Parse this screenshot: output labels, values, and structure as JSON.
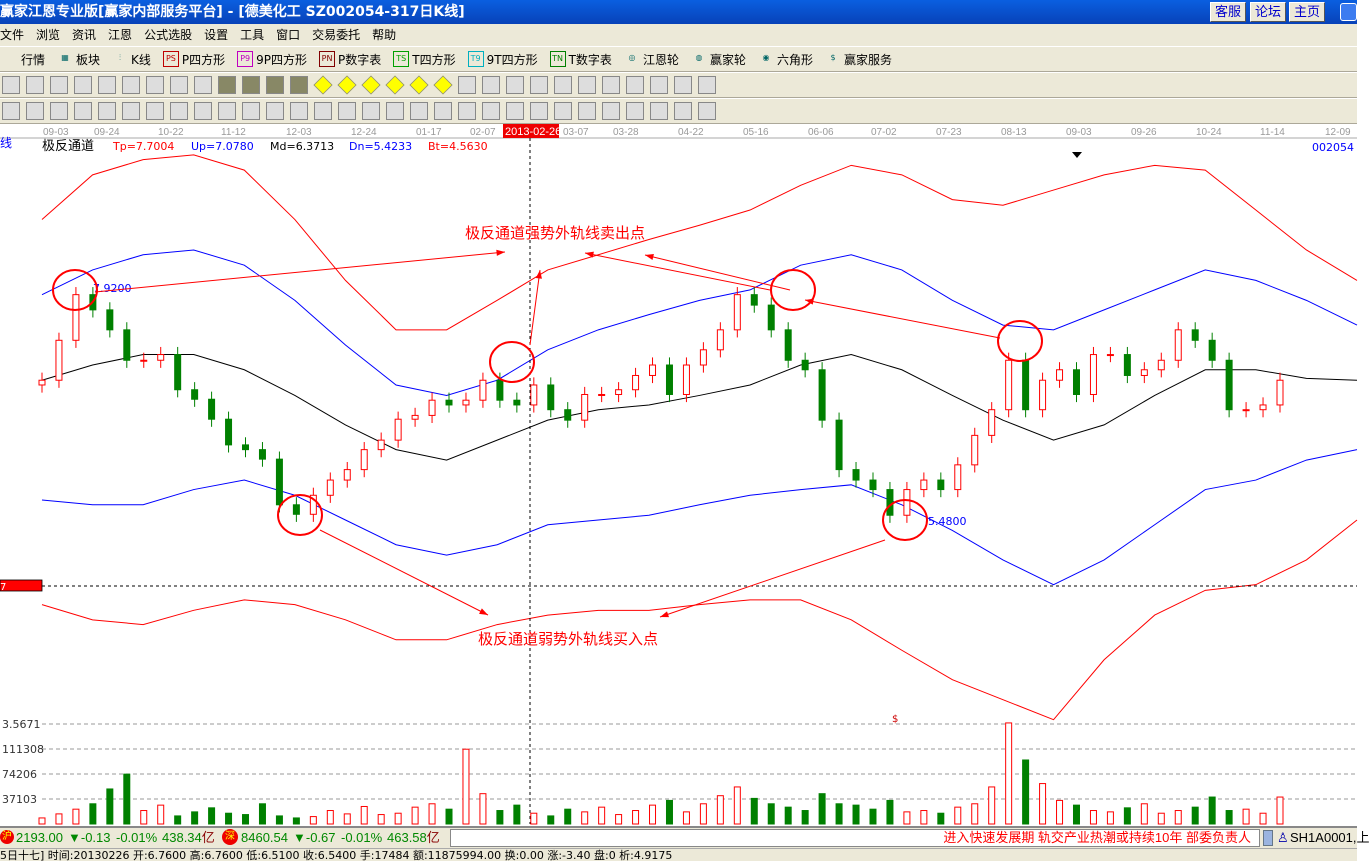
{
  "window": {
    "title": "赢家江恩专业版[赢家内部服务平台] - [德美化工    SZ002054-317日K线]",
    "buttons": [
      "客服",
      "论坛",
      "主页"
    ]
  },
  "menu": [
    "文件",
    "浏览",
    "资讯",
    "江恩",
    "公式选股",
    "设置",
    "工具",
    "窗口",
    "交易委托",
    "帮助"
  ],
  "toolbar1": [
    {
      "label": "行情",
      "icon": "quotes-icon"
    },
    {
      "label": "板块",
      "icon": "sector-icon"
    },
    {
      "label": "K线",
      "icon": "kline-icon"
    },
    {
      "label": "P四方形",
      "icon": "PS",
      "color": "#c00000"
    },
    {
      "label": "9P四方形",
      "icon": "P9",
      "color": "#c000c0"
    },
    {
      "label": "P数字表",
      "icon": "PN",
      "color": "#800000"
    },
    {
      "label": "T四方形",
      "icon": "TS",
      "color": "#00a000"
    },
    {
      "label": "9T四方形",
      "icon": "T9",
      "color": "#00b0c0"
    },
    {
      "label": "T数字表",
      "icon": "TN",
      "color": "#008000"
    },
    {
      "label": "江恩轮",
      "icon": "gann-wheel-icon"
    },
    {
      "label": "赢家轮",
      "icon": "big-wheel-icon"
    },
    {
      "label": "六角形",
      "icon": "hexagon-icon"
    },
    {
      "label": "赢家服务",
      "icon": "dollar-icon"
    }
  ],
  "toolbar2_icons": [
    "dropdown",
    "network",
    "clipboard",
    "chart-3",
    "chart-9",
    "candle",
    "dropdown",
    "fractal",
    "flag",
    "first",
    "last",
    "prev",
    "next",
    "diamond-left",
    "diamond-right",
    "diamond-h",
    "diamond-x",
    "diamond-v",
    "diamond-cross",
    "hand",
    "crosshair",
    "line",
    "tee",
    "brain",
    "calendar",
    "calculator",
    "notes",
    "save",
    "globe",
    "tools"
  ],
  "toolbar3_icons": [
    "grid",
    "gold",
    "gold2",
    "F",
    "spiral",
    "pen",
    "circle",
    "hash",
    "n2",
    "triangle",
    "target",
    "star",
    "web",
    "parallel",
    "divine",
    "fib",
    "ruler",
    "measure",
    "box",
    "fan",
    "fan2",
    "fan3",
    "angle",
    "zigzag",
    "grid2",
    "grid3",
    "lines",
    "table",
    "pct",
    "percent"
  ],
  "date_axis": [
    "09-03",
    "09-24",
    "10-22",
    "11-12",
    "12-03",
    "12-24",
    "01-17",
    "02-07",
    "03-07",
    "03-28",
    "04-22",
    "05-16",
    "06-06",
    "07-02",
    "07-23",
    "08-13",
    "09-03",
    "09-26",
    "10-24",
    "11-14",
    "12-09"
  ],
  "cursor_date": "2013-02-26",
  "indicator": {
    "name": "极反通道",
    "tp": "Tp=7.7004",
    "up": "Up=7.0780",
    "md": "Md=6.3713",
    "dn": "Dn=5.4233",
    "bt": "Bt=4.5630",
    "code": "002054",
    "left_label": "线"
  },
  "price_marker": "7",
  "colors": {
    "tp": "#ff0000",
    "up": "#0000ff",
    "md": "#000000",
    "dn": "#0000ff",
    "bt": "#ff0000",
    "rise": "#ff0000",
    "fall": "#008000"
  },
  "chart_data": {
    "type": "candlestick",
    "close": [
      6.95,
      7.37,
      7.85,
      7.69,
      7.48,
      7.16,
      7.16,
      7.22,
      6.85,
      6.75,
      6.54,
      6.27,
      6.22,
      6.12,
      5.64,
      5.54,
      5.74,
      5.9,
      6.01,
      6.22,
      6.32,
      6.54,
      6.58,
      6.74,
      6.69,
      6.74,
      6.95,
      6.74,
      6.69,
      6.9,
      6.64,
      6.53,
      6.8,
      6.8,
      6.85,
      7.0,
      7.11,
      6.8,
      7.11,
      7.27,
      7.48,
      7.85,
      7.74,
      7.48,
      7.16,
      7.06,
      6.53,
      6.01,
      5.9,
      5.8,
      5.53,
      5.8,
      5.9,
      5.8,
      6.06,
      6.37,
      6.64,
      7.16,
      6.64,
      6.95,
      7.06,
      6.8,
      7.22,
      7.22,
      7.0,
      7.06,
      7.16,
      7.48,
      7.37,
      7.16,
      6.64,
      6.64,
      6.69,
      6.95
    ],
    "volume": [
      9000,
      15000,
      22000,
      30000,
      52000,
      74000,
      20000,
      28000,
      12000,
      18000,
      24000,
      16000,
      14000,
      30000,
      12000,
      9000,
      11000,
      20000,
      15000,
      26000,
      14000,
      16000,
      25000,
      30000,
      22000,
      111000,
      45000,
      20000,
      28000,
      16000,
      12000,
      22000,
      18000,
      25000,
      14000,
      20000,
      28000,
      35000,
      18000,
      30000,
      42000,
      55000,
      38000,
      30000,
      25000,
      20000,
      45000,
      30000,
      28000,
      22000,
      35000,
      18000,
      20000,
      16000,
      25000,
      30000,
      55000,
      150000,
      95000,
      60000,
      35000,
      28000,
      20000,
      18000,
      24000,
      30000,
      16000,
      20000,
      25000,
      40000,
      20000,
      22000,
      16000,
      40000
    ],
    "bands": {
      "Tp": [
        8.64,
        9.11,
        9.27,
        9.32,
        9.16,
        8.64,
        8.0,
        7.48,
        7.48,
        7.79,
        8.11,
        8.27,
        8.43,
        8.58,
        8.74,
        9.0,
        9.21,
        9.11,
        8.85,
        8.79,
        8.95,
        9.11,
        9.21,
        9.16,
        8.74,
        8.32,
        8.0
      ],
      "Up": [
        7.85,
        8.11,
        8.27,
        8.32,
        8.16,
        7.79,
        7.32,
        6.9,
        6.79,
        6.95,
        7.27,
        7.48,
        7.64,
        7.79,
        7.9,
        8.16,
        8.27,
        8.11,
        7.79,
        7.53,
        7.48,
        7.69,
        7.9,
        8.11,
        8.0,
        7.79,
        7.53
      ],
      "Md": [
        6.95,
        7.11,
        7.22,
        7.22,
        7.06,
        6.79,
        6.48,
        6.22,
        6.11,
        6.32,
        6.53,
        6.64,
        6.69,
        6.79,
        6.9,
        7.11,
        7.22,
        7.06,
        6.79,
        6.53,
        6.32,
        6.48,
        6.79,
        7.06,
        7.06,
        6.97,
        6.95
      ],
      "Dn": [
        5.69,
        5.64,
        5.64,
        5.8,
        5.9,
        5.74,
        5.48,
        5.22,
        5.11,
        5.22,
        5.43,
        5.48,
        5.53,
        5.64,
        5.74,
        5.8,
        5.85,
        5.64,
        5.37,
        5.06,
        4.8,
        5.06,
        5.43,
        5.8,
        5.9,
        6.11,
        6.22
      ],
      "Bt": [
        4.59,
        4.43,
        4.38,
        4.53,
        4.64,
        4.59,
        4.43,
        4.22,
        4.22,
        4.38,
        4.48,
        4.53,
        4.53,
        4.59,
        4.64,
        4.64,
        4.43,
        4.11,
        3.8,
        3.59,
        3.38,
        4.01,
        4.48,
        4.74,
        4.8,
        5.06,
        5.48
      ]
    },
    "volume_ticks": [
      "3.5671",
      "111308",
      "74206",
      "37103"
    ],
    "annotations": {
      "high_label": "7.9200",
      "low_label": "5.4800",
      "sell_text": "极反通道强势外轨线卖出点",
      "buy_text": "极反通道弱势外轨线买入点",
      "marker": "$"
    }
  },
  "index_bar": {
    "sh": {
      "badge": "沪",
      "value": "2193.00",
      "change": "▼-0.13",
      "pct": "-0.01%",
      "amount": "438.34",
      "unit": "亿"
    },
    "sz": {
      "badge": "深",
      "value": "8460.54",
      "change": "▼-0.67",
      "pct": "-0.01%",
      "amount": "463.58",
      "unit": "亿"
    },
    "news": "进入快速发展期  轨交产业热潮或持续10年       部委负责人",
    "account": "SH1A0001,上"
  },
  "info_line": "5日十七] 时间:20130226 开:6.7600 高:6.7600 低:6.5100 收:6.5400 手:17484 额:11875994.00 换:0.00 涨:-3.40 盘:0 析:4.9175"
}
